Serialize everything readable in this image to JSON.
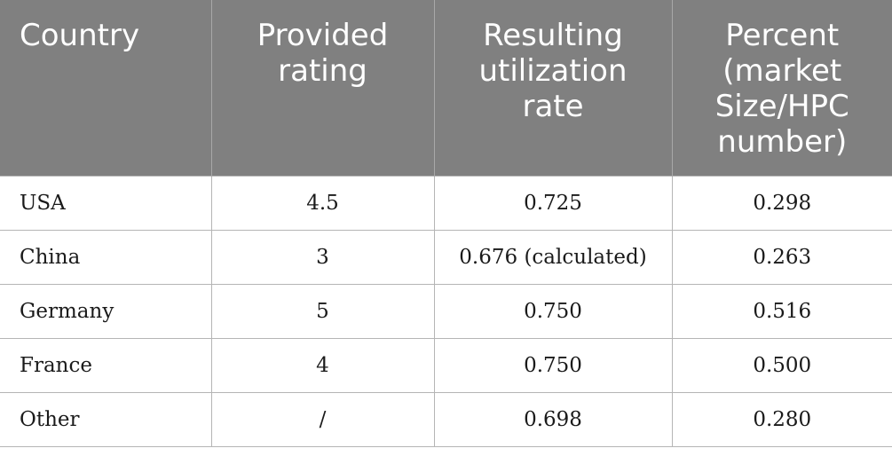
{
  "table": {
    "headers": [
      [
        "Country"
      ],
      [
        "Provided",
        "rating"
      ],
      [
        "Resulting",
        "utilization",
        "rate"
      ],
      [
        "Percent",
        "(market",
        "Size/HPC",
        "number)"
      ]
    ],
    "rows": [
      [
        "USA",
        "4.5",
        "0.725",
        "0.298"
      ],
      [
        "China",
        "3",
        "0.676 (calculated)",
        "0.263"
      ],
      [
        "Germany",
        "5",
        "0.750",
        "0.516"
      ],
      [
        "France",
        "4",
        "0.750",
        "0.500"
      ],
      [
        "Other",
        "/",
        "0.698",
        "0.280"
      ]
    ]
  },
  "colors": {
    "header_background": "#808080",
    "header_text": "#ffffff",
    "border": "#b5b5b5"
  }
}
